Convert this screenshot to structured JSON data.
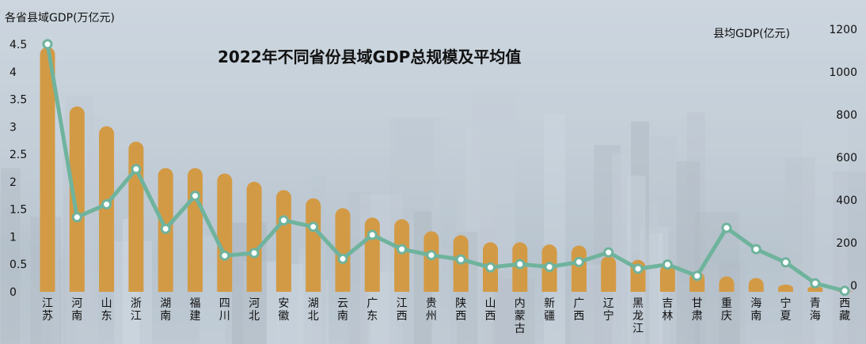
{
  "chart_data": {
    "type": "bar",
    "title": "2022年不同省份县域GDP总规模及平均值",
    "left_axis_title": "各省县域GDP(万亿元)",
    "right_axis_title": "县均GDP(亿元)",
    "left_ylim": [
      0,
      4.5
    ],
    "left_ticks": [
      "0",
      "0.5",
      "1",
      "1.5",
      "2",
      "2.5",
      "3",
      "3.5",
      "4",
      "4.5"
    ],
    "right_ylim": [
      0,
      1200
    ],
    "right_ticks": [
      "0",
      "200",
      "400",
      "600",
      "800",
      "1000",
      "1200"
    ],
    "bar_color": "#d39a45",
    "line_color": "#6fb39d",
    "grid": false,
    "categories": [
      "江苏",
      "河南",
      "山东",
      "浙江",
      "湖南",
      "福建",
      "四川",
      "河北",
      "安徽",
      "湖北",
      "云南",
      "广东",
      "江西",
      "贵州",
      "陕西",
      "山西",
      "内蒙古",
      "新疆",
      "广西",
      "辽宁",
      "黑龙江",
      "吉林",
      "甘肃",
      "重庆",
      "海南",
      "宁夏",
      "青海",
      "西藏"
    ],
    "series": [
      {
        "axis": "left",
        "kind": "bar",
        "values": [
          4.45,
          3.37,
          3.01,
          2.73,
          2.25,
          2.25,
          2.15,
          2.0,
          1.85,
          1.7,
          1.52,
          1.35,
          1.32,
          1.1,
          1.03,
          0.9,
          0.9,
          0.86,
          0.84,
          0.65,
          0.58,
          0.5,
          0.37,
          0.28,
          0.25,
          0.13,
          0.1,
          0.02
        ]
      },
      {
        "axis": "right",
        "kind": "line",
        "values": [
          1130,
          320,
          380,
          545,
          265,
          420,
          140,
          152,
          305,
          275,
          125,
          237,
          170,
          142,
          122,
          85,
          100,
          87,
          110,
          155,
          78,
          98,
          45,
          270,
          170,
          108,
          10,
          -25
        ]
      }
    ]
  }
}
